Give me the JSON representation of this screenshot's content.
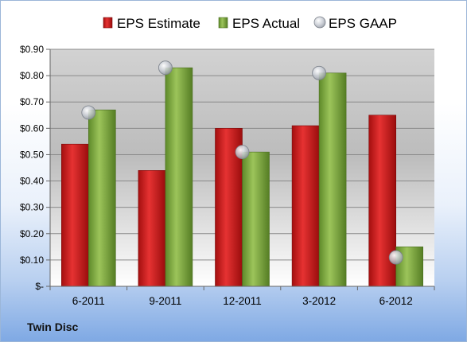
{
  "company": "Twin Disc",
  "colors": {
    "estimate": "#c81e1e",
    "actual": "#7aa33a",
    "gaap": "#b8bcc4"
  },
  "chart_data": {
    "type": "bar",
    "title": "",
    "xlabel": "",
    "ylabel": "",
    "categories": [
      "6-2011",
      "9-2011",
      "12-2011",
      "3-2012",
      "6-2012"
    ],
    "series": [
      {
        "name": "EPS Estimate",
        "type": "bar",
        "values": [
          0.54,
          0.44,
          0.6,
          0.61,
          0.65
        ]
      },
      {
        "name": "EPS Actual",
        "type": "bar",
        "values": [
          0.67,
          0.83,
          0.51,
          0.81,
          0.15
        ]
      },
      {
        "name": "EPS GAAP",
        "type": "scatter",
        "values": [
          0.66,
          0.83,
          0.51,
          0.81,
          0.11
        ]
      }
    ],
    "ylim": [
      0,
      0.9
    ],
    "yticks": [
      0,
      0.1,
      0.2,
      0.3,
      0.4,
      0.5,
      0.6,
      0.7,
      0.8,
      0.9
    ],
    "ytick_labels": [
      "$-",
      "$0.10",
      "$0.20",
      "$0.30",
      "$0.40",
      "$0.50",
      "$0.60",
      "$0.70",
      "$0.80",
      "$0.90"
    ],
    "grid": true,
    "legend": "top"
  }
}
